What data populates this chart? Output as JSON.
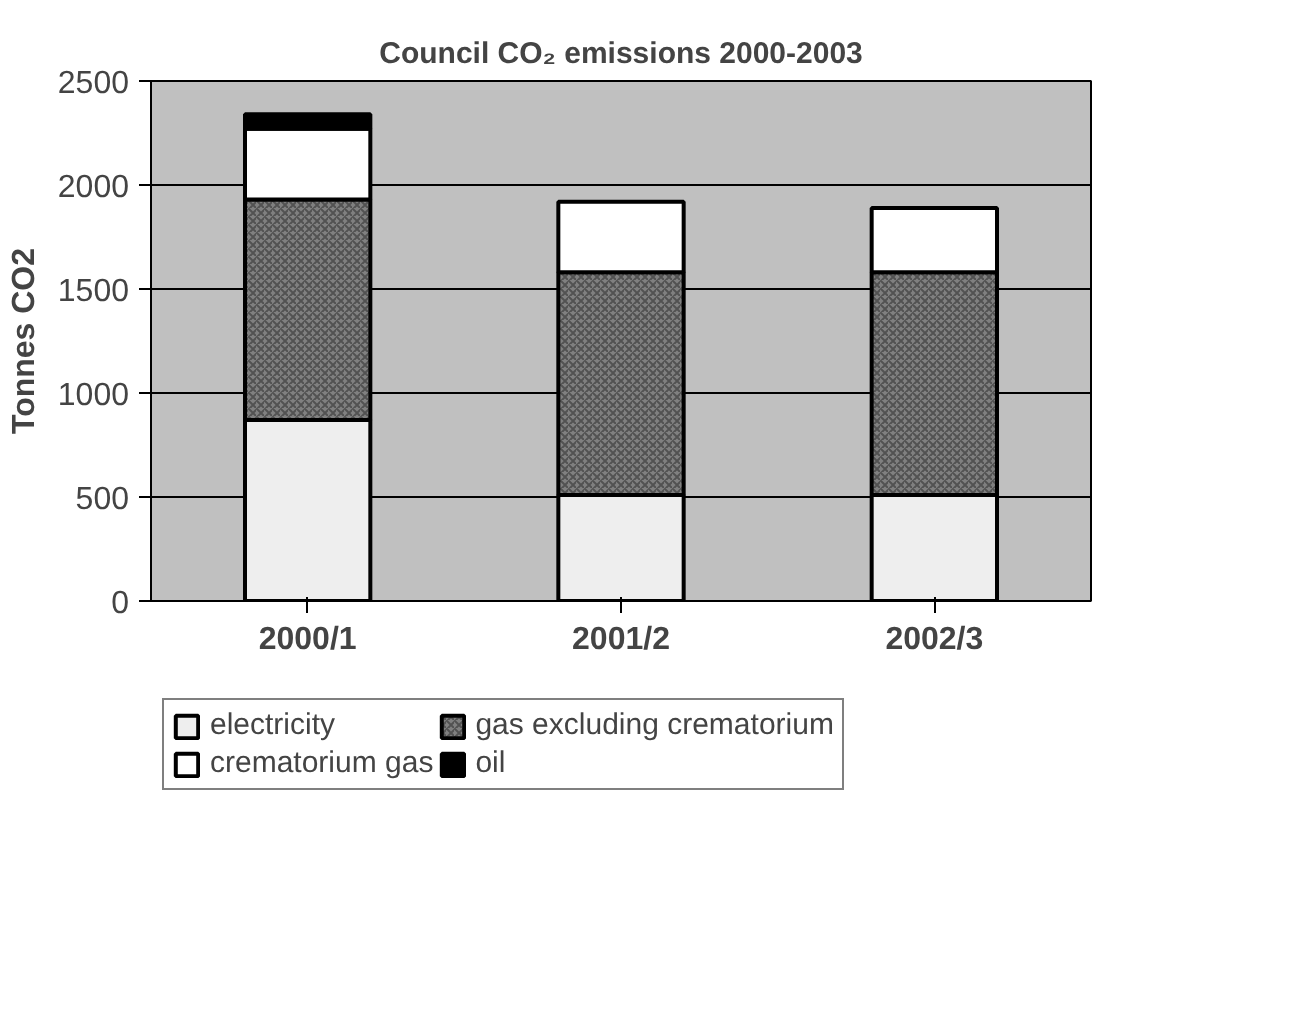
{
  "chart_data": {
    "type": "bar",
    "title": "Council CO₂ emissions 2000-2003",
    "ylabel": "Tonnes CO2",
    "categories": [
      "2000/1",
      "2001/2",
      "2002/3"
    ],
    "stacked": true,
    "series": [
      {
        "name": "electricity",
        "color": "#eeeeee",
        "values": [
          870,
          510,
          510
        ]
      },
      {
        "name": "gas excluding crematorium",
        "color": "#808080",
        "values": [
          1060,
          1070,
          1070
        ]
      },
      {
        "name": "crematorium gas",
        "color": "#ffffff",
        "values": [
          340,
          340,
          310
        ]
      },
      {
        "name": "oil",
        "color": "#000000",
        "values": [
          70,
          null,
          null
        ]
      }
    ],
    "ylim": [
      0,
      2500
    ],
    "yticks": [
      0,
      500,
      1000,
      1500,
      2000,
      2500
    ],
    "grid": "y",
    "legend": "bottom"
  }
}
